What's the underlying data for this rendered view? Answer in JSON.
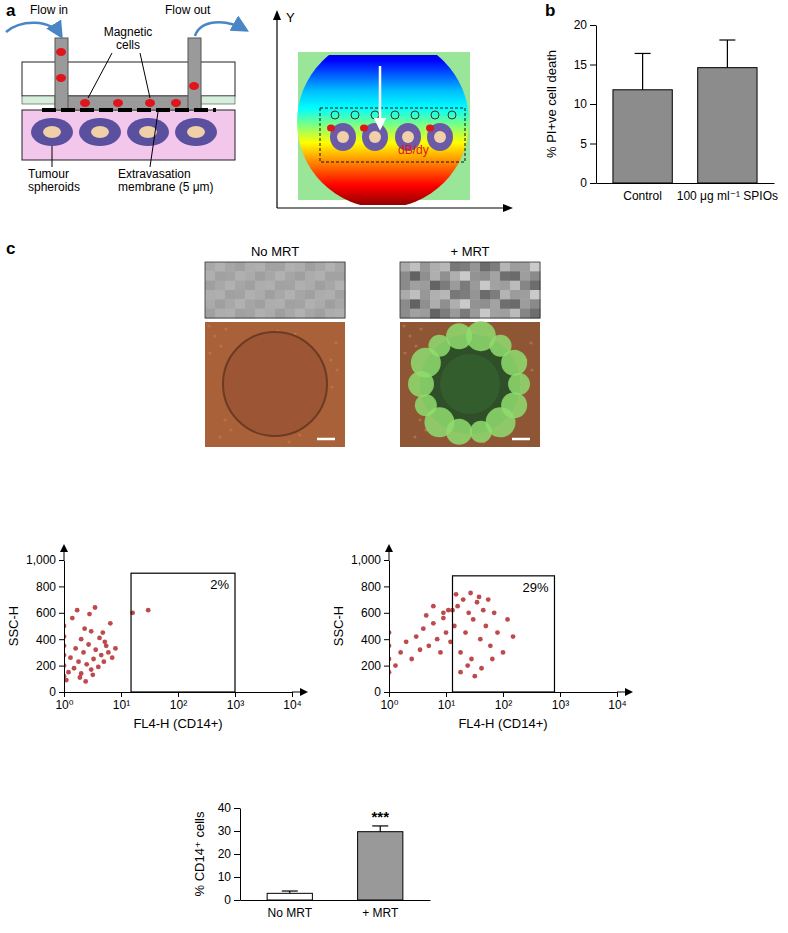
{
  "chart_data": [
    {
      "type": "bar",
      "categories": [
        "Control",
        "100 μg ml⁻¹ SPIOs"
      ],
      "values": [
        11.8,
        14.6
      ],
      "errors": [
        4.6,
        3.5
      ],
      "color": "#8c8c8c",
      "ylim": [
        0,
        20
      ],
      "yticks": [
        0,
        5,
        10,
        15,
        20
      ],
      "y_label": "% PI+ve cell death"
    },
    {
      "type": "scatter",
      "log": "x",
      "x": [
        1,
        1,
        1,
        1,
        1,
        1,
        1.2,
        1.3,
        1.5,
        1.6,
        1.8,
        2,
        2,
        2.2,
        2.5,
        2.7,
        3,
        3,
        3.3,
        3.6,
        4,
        4.2,
        4.5,
        5,
        5.5,
        6,
        6.5,
        7,
        8,
        1.4,
        1.7,
        2.3,
        2.8,
        3.5,
        4.8,
        1.1,
        1.9,
        2.4,
        3.2,
        5.2,
        16,
        30
      ],
      "values": [
        120,
        200,
        280,
        350,
        420,
        500,
        150,
        260,
        180,
        330,
        230,
        140,
        400,
        300,
        210,
        360,
        170,
        460,
        250,
        320,
        190,
        410,
        280,
        230,
        350,
        300,
        520,
        260,
        330,
        560,
        620,
        480,
        590,
        640,
        450,
        90,
        110,
        80,
        130,
        380,
        600,
        620
      ],
      "color": "#b22a2e",
      "xlim": [
        1,
        10000
      ],
      "xticks": [
        {
          "value": 1,
          "label": "10⁰"
        },
        {
          "value": 10,
          "label": "10¹"
        },
        {
          "value": 100,
          "label": "10²"
        },
        {
          "value": 1000,
          "label": "10³"
        },
        {
          "value": 10000,
          "label": "10⁴"
        }
      ],
      "ylim": [
        0,
        1000
      ],
      "yticks": [
        0,
        200,
        400,
        600,
        800,
        {
          "value": 1000,
          "label": "1,000"
        }
      ],
      "x_label": "FL4-H (CD14+)",
      "y_label": "SSC-H",
      "gate": {
        "x": [
          15,
          1000
        ],
        "y": [
          0,
          900
        ],
        "percent": 2,
        "label": "2%"
      }
    },
    {
      "type": "scatter",
      "log": "x",
      "x": [
        1,
        1,
        1,
        1,
        1.3,
        1.6,
        2,
        2.5,
        3,
        3.5,
        4,
        5,
        6,
        7,
        8,
        9,
        10,
        11,
        12,
        14,
        16,
        18,
        20,
        22,
        25,
        28,
        30,
        35,
        40,
        45,
        50,
        60,
        70,
        80,
        100,
        120,
        150,
        18,
        24,
        32,
        42,
        55,
        15,
        13,
        9,
        6,
        4.5,
        27,
        38,
        65
      ],
      "values": [
        150,
        250,
        350,
        450,
        200,
        300,
        380,
        250,
        420,
        320,
        480,
        350,
        520,
        400,
        300,
        560,
        450,
        620,
        380,
        500,
        650,
        300,
        700,
        450,
        600,
        250,
        550,
        680,
        400,
        620,
        500,
        350,
        600,
        450,
        300,
        550,
        420,
        150,
        200,
        120,
        180,
        700,
        740,
        620,
        600,
        650,
        580,
        750,
        720,
        250
      ],
      "color": "#b22a2e",
      "xlim": [
        1,
        10000
      ],
      "xticks": [
        {
          "value": 1,
          "label": "10⁰"
        },
        {
          "value": 10,
          "label": "10¹"
        },
        {
          "value": 100,
          "label": "10²"
        },
        {
          "value": 1000,
          "label": "10³"
        },
        {
          "value": 10000,
          "label": "10⁴"
        }
      ],
      "ylim": [
        0,
        1000
      ],
      "yticks": [
        0,
        200,
        400,
        600,
        800,
        {
          "value": 1000,
          "label": "1,000"
        }
      ],
      "x_label": "FL4-H (CD14+)",
      "y_label": "SSC-H",
      "gate": {
        "x": [
          13,
          800
        ],
        "y": [
          0,
          880
        ],
        "percent": 29,
        "label": "29%"
      }
    },
    {
      "type": "bar",
      "categories": [
        "No MRT",
        "+ MRT"
      ],
      "values": [
        2.9,
        29.7
      ],
      "errors": [
        1,
        2.5
      ],
      "colors": [
        "#ffffff",
        "#999999"
      ],
      "ylim": [
        0,
        40
      ],
      "yticks": [
        0,
        10,
        20,
        30,
        40
      ],
      "y_label": "% CD14⁺ cells",
      "significance": [
        null,
        "***"
      ]
    }
  ],
  "diagram": {
    "panel_labels": [
      "a",
      "b",
      "c"
    ],
    "schematic": {
      "flow_in": "Flow in",
      "flow_out": "Flow out",
      "magnetic_cells": [
        "Magnetic",
        "cells"
      ],
      "tumour_spheroids": [
        "Tumour",
        "spheroids"
      ],
      "membrane": [
        "Extravasation",
        "membrane (5 μm)"
      ]
    },
    "field_map": {
      "axis": "Y",
      "gradient": "dB/dy"
    },
    "conditions": [
      "No MRT",
      "+ MRT"
    ]
  }
}
